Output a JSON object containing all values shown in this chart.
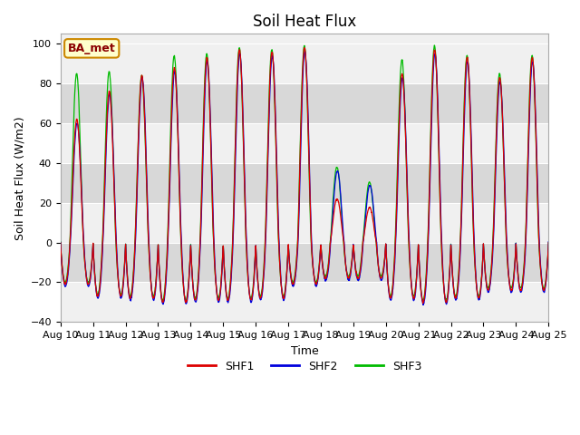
{
  "title": "Soil Heat Flux",
  "xlabel": "Time",
  "ylabel": "Soil Heat Flux (W/m2)",
  "ylim": [
    -40,
    105
  ],
  "yticks": [
    -40,
    -20,
    0,
    20,
    40,
    60,
    80,
    100
  ],
  "n_days": 15,
  "n_points_per_day": 144,
  "shf1_color": "#dd0000",
  "shf2_color": "#0000dd",
  "shf3_color": "#00bb00",
  "shf1_linewidth": 0.9,
  "shf2_linewidth": 0.9,
  "shf3_linewidth": 0.9,
  "background_color": "#ffffff",
  "plot_bg_light": "#f0f0f0",
  "plot_bg_dark": "#d8d8d8",
  "grid_color": "#ffffff",
  "legend_label1": "SHF1",
  "legend_label2": "SHF2",
  "legend_label3": "SHF3",
  "annotation_text": "BA_met",
  "title_fontsize": 12,
  "label_fontsize": 9,
  "tick_fontsize": 8,
  "legend_fontsize": 9,
  "day_peaks": [
    62,
    76,
    84,
    88,
    93,
    97,
    96,
    98,
    0,
    0,
    85,
    97,
    93,
    83,
    93
  ],
  "day_peaks2": [
    60,
    75,
    83,
    86,
    91,
    95,
    94,
    96,
    0,
    0,
    83,
    95,
    91,
    81,
    91
  ],
  "day_peaks3": [
    85,
    86,
    84,
    94,
    95,
    98,
    97,
    99,
    0,
    0,
    92,
    99,
    94,
    85,
    94
  ],
  "night_troughs": [
    21,
    27,
    28,
    30,
    29,
    29,
    28,
    21,
    18,
    18,
    28,
    30,
    28,
    24,
    24
  ],
  "night_troughs2": [
    22,
    28,
    29,
    31,
    30,
    30,
    29,
    22,
    19,
    19,
    29,
    31,
    29,
    25,
    25
  ],
  "night_troughs3": [
    20,
    26,
    27,
    29,
    28,
    28,
    27,
    20,
    17,
    17,
    27,
    29,
    27,
    23,
    23
  ],
  "partial_day8_peak1": 22,
  "partial_day8_peak2": 36,
  "partial_day8_peak3": 38
}
